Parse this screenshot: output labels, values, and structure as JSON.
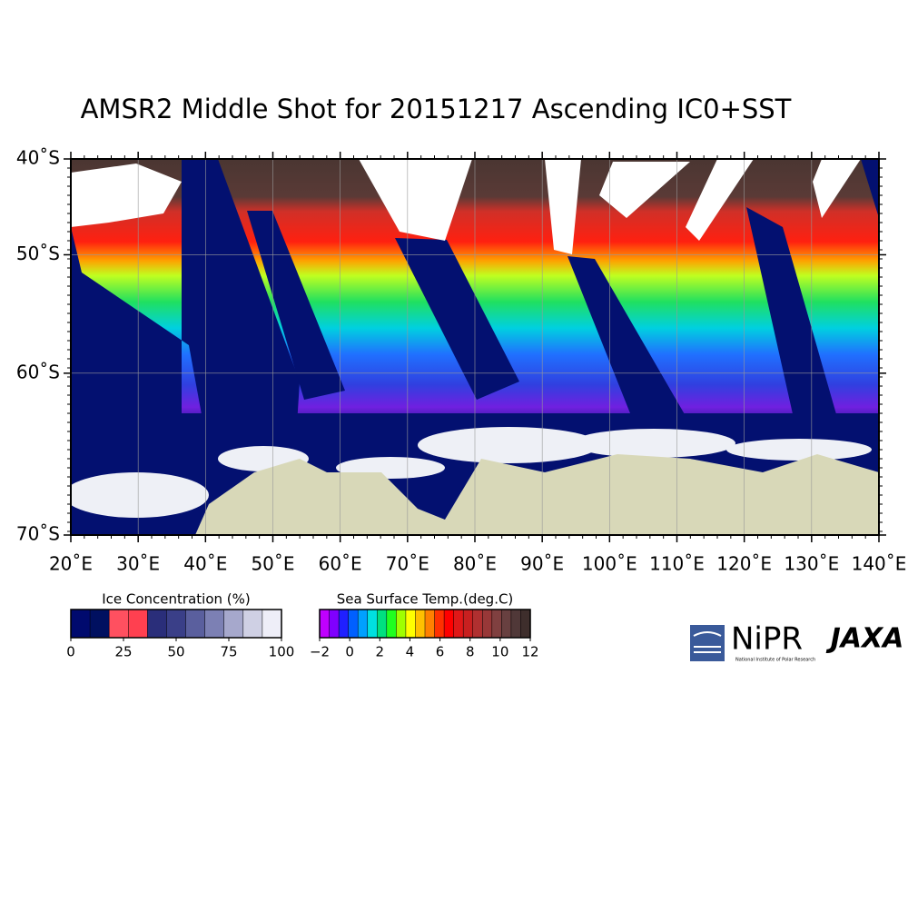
{
  "title": "AMSR2 Middle Shot for 20151217 Ascending IC0+SST",
  "map": {
    "projection": "mercator",
    "lon_range": [
      20,
      140
    ],
    "lat_range": [
      -40,
      -70
    ],
    "lat_ticks": [
      {
        "value": -40,
        "label": "40˚S"
      },
      {
        "value": -50,
        "label": "50˚S"
      },
      {
        "value": -60,
        "label": "60˚S"
      },
      {
        "value": -70,
        "label": "70˚S"
      }
    ],
    "lon_ticks": [
      {
        "value": 20,
        "label": "20˚E"
      },
      {
        "value": 30,
        "label": "30˚E"
      },
      {
        "value": 40,
        "label": "40˚E"
      },
      {
        "value": 50,
        "label": "50˚E"
      },
      {
        "value": 60,
        "label": "60˚E"
      },
      {
        "value": 70,
        "label": "70˚E"
      },
      {
        "value": 80,
        "label": "80˚E"
      },
      {
        "value": 90,
        "label": "90˚E"
      },
      {
        "value": 100,
        "label": "100˚E"
      },
      {
        "value": 110,
        "label": "110˚E"
      },
      {
        "value": 120,
        "label": "120˚E"
      },
      {
        "value": 130,
        "label": "130˚E"
      },
      {
        "value": 140,
        "label": "140˚E"
      }
    ],
    "grid": true
  },
  "colorbars": [
    {
      "title": "Ice Concentration (%)",
      "range": [
        0,
        100
      ],
      "ticks": [
        0,
        25,
        50,
        75,
        100
      ],
      "colors": [
        "#000a6e",
        "#001060",
        "#ff5060",
        "#ff4050",
        "#2a2e7a",
        "#3a3f88",
        "#5a5f9e",
        "#7c80b4",
        "#a6a8cc",
        "#cfd0e4",
        "#eeeef8"
      ]
    },
    {
      "title": "Sea Surface Temp.(deg.C)",
      "range": [
        -2,
        12
      ],
      "ticks": [
        {
          "value": -2,
          "label": "−2"
        },
        0,
        2,
        4,
        6,
        8,
        10,
        12
      ],
      "colors": [
        "#c000ff",
        "#8000ff",
        "#2020ff",
        "#0060ff",
        "#00a0ff",
        "#00e0e0",
        "#00e080",
        "#20ff20",
        "#a0ff00",
        "#ffff00",
        "#ffc000",
        "#ff8000",
        "#ff3000",
        "#ff0000",
        "#e01818",
        "#c82020",
        "#b03030",
        "#983838",
        "#804040",
        "#684040",
        "#503838",
        "#3e2e2c"
      ]
    }
  ],
  "logos": {
    "nipr": "NiPR",
    "nipr_full": "National Institute of Polar Research",
    "jaxa": "JAXA"
  }
}
